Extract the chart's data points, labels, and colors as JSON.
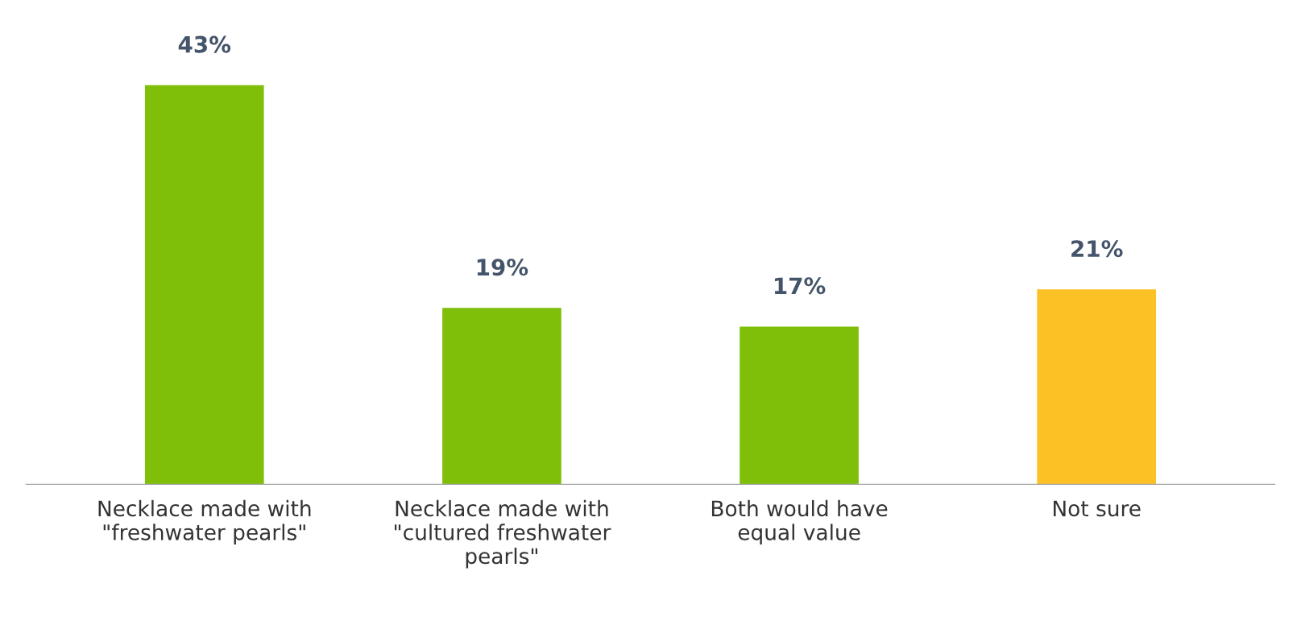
{
  "chart_data": {
    "type": "bar",
    "categories": [
      "Necklace made with\n\"freshwater pearls\"",
      "Necklace made with\n\"cultured freshwater\npearls\"",
      "Both would have\nequal value",
      "Not sure"
    ],
    "values": [
      43,
      19,
      17,
      21
    ],
    "colors": [
      "#7fbf0a",
      "#7fbf0a",
      "#7fbf0a",
      "#fcc125"
    ],
    "value_labels": [
      "43%",
      "19%",
      "17%",
      "21%"
    ]
  }
}
